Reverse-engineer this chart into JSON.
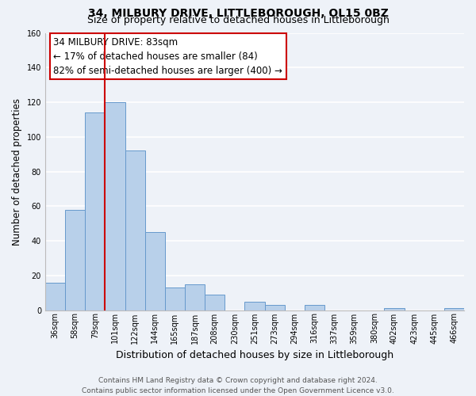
{
  "title": "34, MILBURY DRIVE, LITTLEBOROUGH, OL15 0BZ",
  "subtitle": "Size of property relative to detached houses in Littleborough",
  "xlabel": "Distribution of detached houses by size in Littleborough",
  "ylabel": "Number of detached properties",
  "bin_labels": [
    "36sqm",
    "58sqm",
    "79sqm",
    "101sqm",
    "122sqm",
    "144sqm",
    "165sqm",
    "187sqm",
    "208sqm",
    "230sqm",
    "251sqm",
    "273sqm",
    "294sqm",
    "316sqm",
    "337sqm",
    "359sqm",
    "380sqm",
    "402sqm",
    "423sqm",
    "445sqm",
    "466sqm"
  ],
  "bar_heights": [
    16,
    58,
    114,
    120,
    92,
    45,
    13,
    15,
    9,
    0,
    5,
    3,
    0,
    3,
    0,
    0,
    0,
    1,
    0,
    0,
    1
  ],
  "bar_color": "#b8d0ea",
  "bar_edge_color": "#6699cc",
  "vline_color": "#cc0000",
  "ylim": [
    0,
    160
  ],
  "yticks": [
    0,
    20,
    40,
    60,
    80,
    100,
    120,
    140,
    160
  ],
  "annotation_line1": "34 MILBURY DRIVE: 83sqm",
  "annotation_line2": "← 17% of detached houses are smaller (84)",
  "annotation_line3": "82% of semi-detached houses are larger (400) →",
  "footer_line1": "Contains HM Land Registry data © Crown copyright and database right 2024.",
  "footer_line2": "Contains public sector information licensed under the Open Government Licence v3.0.",
  "background_color": "#eef2f8",
  "grid_color": "#ffffff",
  "title_fontsize": 10,
  "subtitle_fontsize": 9,
  "tick_fontsize": 7,
  "ylabel_fontsize": 8.5,
  "xlabel_fontsize": 9,
  "footer_fontsize": 6.5,
  "ann_fontsize": 8.5
}
